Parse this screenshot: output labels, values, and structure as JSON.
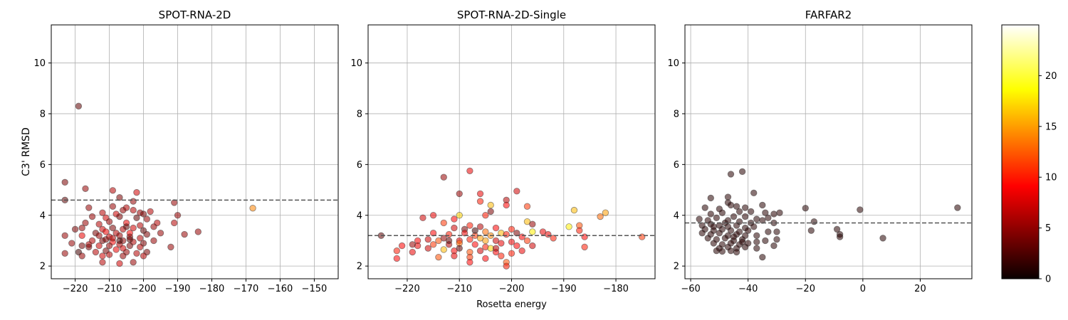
{
  "chart_data": [
    {
      "type": "scatter",
      "title": "SPOT-RNA-2D",
      "xlabel": "",
      "ylabel": "C3' RMSD",
      "xlim": [
        -227,
        -143
      ],
      "ylim": [
        1.5,
        11.5
      ],
      "xticks": [
        -220,
        -210,
        -200,
        -190,
        -180,
        -170,
        -160,
        -150
      ],
      "yticks": [
        2,
        4,
        6,
        8,
        10
      ],
      "grid": true,
      "reference_line": 4.6,
      "points": [
        [
          -219,
          8.3,
          3
        ],
        [
          -223,
          5.3,
          4
        ],
        [
          -217,
          5.05,
          5
        ],
        [
          -223,
          4.6,
          3
        ],
        [
          -209,
          4.98,
          6
        ],
        [
          -207,
          4.7,
          4
        ],
        [
          -202,
          4.9,
          7
        ],
        [
          -203,
          4.55,
          5
        ],
        [
          -191,
          4.5,
          5
        ],
        [
          -168,
          4.28,
          14
        ],
        [
          -216,
          4.3,
          5
        ],
        [
          -209,
          4.35,
          5
        ],
        [
          -205,
          4.3,
          6
        ],
        [
          -201,
          4.1,
          5
        ],
        [
          -198,
          4.15,
          6
        ],
        [
          -212,
          4.1,
          6
        ],
        [
          -208,
          4.05,
          7
        ],
        [
          -206,
          4.2,
          5
        ],
        [
          -203,
          4.2,
          6
        ],
        [
          -200,
          4.05,
          4
        ],
        [
          -190,
          4.0,
          5
        ],
        [
          -215,
          3.95,
          5
        ],
        [
          -211,
          3.9,
          7
        ],
        [
          -207,
          3.95,
          4
        ],
        [
          -202,
          3.9,
          3
        ],
        [
          -199,
          3.85,
          5
        ],
        [
          -196,
          3.7,
          6
        ],
        [
          -217,
          3.7,
          5
        ],
        [
          -213,
          3.65,
          6
        ],
        [
          -210,
          3.75,
          5
        ],
        [
          -205,
          3.7,
          8
        ],
        [
          -201,
          3.6,
          6
        ],
        [
          -197,
          3.55,
          5
        ],
        [
          -191,
          3.7,
          6
        ],
        [
          -212,
          3.45,
          7
        ],
        [
          -209,
          3.5,
          4
        ],
        [
          -206,
          3.45,
          6
        ],
        [
          -203,
          3.5,
          7
        ],
        [
          -200,
          3.4,
          3
        ],
        [
          -195,
          3.3,
          5
        ],
        [
          -220,
          3.45,
          4
        ],
        [
          -218,
          3.5,
          5
        ],
        [
          -214,
          3.3,
          4
        ],
        [
          -211,
          3.35,
          8
        ],
        [
          -208,
          3.3,
          6
        ],
        [
          -204,
          3.3,
          9
        ],
        [
          -199,
          3.25,
          4
        ],
        [
          -188,
          3.25,
          5
        ],
        [
          -184,
          3.35,
          5
        ],
        [
          -223,
          3.2,
          5
        ],
        [
          -218,
          3.2,
          8
        ],
        [
          -213,
          3.2,
          5
        ],
        [
          -210,
          3.15,
          7
        ],
        [
          -207,
          3.2,
          5
        ],
        [
          -204,
          3.15,
          5
        ],
        [
          -201,
          3.1,
          6
        ],
        [
          -197,
          3.0,
          5
        ],
        [
          -215,
          3.0,
          6
        ],
        [
          -212,
          3.0,
          4
        ],
        [
          -209,
          2.95,
          9
        ],
        [
          -206,
          3.0,
          5
        ],
        [
          -203,
          2.95,
          6
        ],
        [
          -200,
          2.9,
          4
        ],
        [
          -221,
          2.9,
          5
        ],
        [
          -218,
          2.8,
          4
        ],
        [
          -216,
          2.85,
          6
        ],
        [
          -213,
          2.8,
          7
        ],
        [
          -210,
          2.8,
          5
        ],
        [
          -207,
          2.85,
          6
        ],
        [
          -204,
          2.8,
          4
        ],
        [
          -201,
          2.75,
          6
        ],
        [
          -192,
          2.75,
          5
        ],
        [
          -219,
          2.55,
          2
        ],
        [
          -214,
          2.55,
          6
        ],
        [
          -211,
          2.6,
          4
        ],
        [
          -208,
          2.65,
          8
        ],
        [
          -205,
          2.55,
          5
        ],
        [
          -202,
          2.5,
          6
        ],
        [
          -199,
          2.55,
          4
        ],
        [
          -223,
          2.5,
          5
        ],
        [
          -218,
          2.4,
          5
        ],
        [
          -212,
          2.4,
          7
        ],
        [
          -210,
          2.45,
          6
        ],
        [
          -206,
          2.4,
          5
        ],
        [
          -200,
          2.4,
          6
        ],
        [
          -212,
          2.15,
          6
        ],
        [
          -207,
          2.1,
          7
        ],
        [
          -203,
          2.15,
          5
        ],
        [
          -216,
          2.75,
          4
        ],
        [
          -205,
          3.55,
          3
        ],
        [
          -207,
          3.0,
          2
        ],
        [
          -204,
          3.05,
          3
        ],
        [
          -206,
          2.7,
          7
        ],
        [
          -209,
          3.1,
          6
        ],
        [
          -211,
          3.05,
          4
        ]
      ]
    },
    {
      "type": "scatter",
      "title": "SPOT-RNA-2D-Single",
      "xlabel": "Rosetta energy",
      "ylabel": "",
      "xlim": [
        -227.5,
        -172.5
      ],
      "ylim": [
        1.5,
        11.5
      ],
      "xticks": [
        -220,
        -210,
        -200,
        -190,
        -180
      ],
      "yticks": [
        2,
        4,
        6,
        8,
        10
      ],
      "grid": true,
      "reference_line": 3.2,
      "points": [
        [
          -208,
          5.75,
          8
        ],
        [
          -213,
          5.5,
          5
        ],
        [
          -210,
          4.85,
          5
        ],
        [
          -206,
          4.85,
          8
        ],
        [
          -199,
          4.95,
          7
        ],
        [
          -201,
          4.6,
          6
        ],
        [
          -204,
          4.4,
          16
        ],
        [
          -206,
          4.55,
          10
        ],
        [
          -201,
          4.4,
          9
        ],
        [
          -197,
          4.35,
          11
        ],
        [
          -188,
          4.2,
          16
        ],
        [
          -182,
          4.1,
          15
        ],
        [
          -205,
          4.0,
          10
        ],
        [
          -204,
          4.15,
          4
        ],
        [
          -210,
          4.0,
          17
        ],
        [
          -215,
          4.0,
          8
        ],
        [
          -217,
          3.9,
          7
        ],
        [
          -197,
          3.75,
          16
        ],
        [
          -183,
          3.95,
          13
        ],
        [
          -187,
          3.6,
          12
        ],
        [
          -196,
          3.65,
          5
        ],
        [
          -211,
          3.85,
          9
        ],
        [
          -208,
          3.6,
          10
        ],
        [
          -206,
          3.55,
          6
        ],
        [
          -203,
          3.5,
          9
        ],
        [
          -200,
          3.45,
          10
        ],
        [
          -194,
          3.35,
          8
        ],
        [
          -189,
          3.55,
          18
        ],
        [
          -213,
          3.7,
          11
        ],
        [
          -211,
          3.5,
          7
        ],
        [
          -209,
          3.45,
          4
        ],
        [
          -205,
          3.35,
          13
        ],
        [
          -202,
          3.3,
          16
        ],
        [
          -199,
          3.3,
          4
        ],
        [
          -196,
          3.35,
          18
        ],
        [
          -192,
          3.1,
          10
        ],
        [
          -187,
          3.4,
          10
        ],
        [
          -175,
          3.15,
          11
        ],
        [
          -186,
          3.15,
          9
        ],
        [
          -193,
          3.25,
          8
        ],
        [
          -215,
          3.3,
          9
        ],
        [
          -212,
          3.25,
          10
        ],
        [
          -209,
          3.3,
          8
        ],
        [
          -207,
          3.2,
          11
        ],
        [
          -204,
          3.2,
          14
        ],
        [
          -201,
          3.25,
          10
        ],
        [
          -198,
          3.15,
          9
        ],
        [
          -218,
          3.0,
          9
        ],
        [
          -216,
          3.05,
          7
        ],
        [
          -213,
          3.1,
          5
        ],
        [
          -210,
          3.0,
          8
        ],
        [
          -208,
          3.05,
          10
        ],
        [
          -205,
          3.0,
          15
        ],
        [
          -203,
          3.0,
          7
        ],
        [
          -200,
          2.95,
          8
        ],
        [
          -197,
          3.0,
          11
        ],
        [
          -225,
          3.2,
          3
        ],
        [
          -221,
          2.8,
          9
        ],
        [
          -218,
          2.8,
          8
        ],
        [
          -215,
          2.85,
          11
        ],
        [
          -212,
          2.85,
          6
        ],
        [
          -210,
          2.9,
          13
        ],
        [
          -207,
          2.85,
          9
        ],
        [
          -205,
          2.75,
          10
        ],
        [
          -202,
          2.9,
          8
        ],
        [
          -199,
          2.8,
          9
        ],
        [
          -196,
          2.8,
          7
        ],
        [
          -222,
          2.6,
          10
        ],
        [
          -219,
          2.55,
          8
        ],
        [
          -216,
          2.7,
          7
        ],
        [
          -213,
          2.65,
          16
        ],
        [
          -211,
          2.6,
          9
        ],
        [
          -208,
          2.55,
          12
        ],
        [
          -206,
          2.6,
          7
        ],
        [
          -203,
          2.55,
          9
        ],
        [
          -200,
          2.5,
          10
        ],
        [
          -198,
          2.6,
          8
        ],
        [
          -214,
          2.35,
          12
        ],
        [
          -211,
          2.4,
          8
        ],
        [
          -208,
          2.35,
          11
        ],
        [
          -205,
          2.3,
          9
        ],
        [
          -202,
          2.4,
          10
        ],
        [
          -222,
          2.3,
          9
        ],
        [
          -208,
          2.15,
          9
        ],
        [
          -201,
          2.15,
          12
        ],
        [
          -201,
          2.0,
          10
        ],
        [
          -186,
          2.75,
          10
        ],
        [
          -204,
          2.7,
          17
        ],
        [
          -210,
          2.7,
          3
        ],
        [
          -212,
          3.0,
          3
        ],
        [
          -207,
          3.4,
          2
        ],
        [
          -219,
          2.85,
          5
        ],
        [
          -206,
          3.1,
          15
        ],
        [
          -203,
          2.7,
          6
        ],
        [
          -214,
          3.0,
          12
        ]
      ]
    },
    {
      "type": "scatter",
      "title": "FARFAR2",
      "xlabel": "",
      "ylabel": "",
      "xlim": [
        -62,
        38
      ],
      "ylim": [
        1.5,
        11.5
      ],
      "xticks": [
        -60,
        -40,
        -20,
        0,
        20
      ],
      "yticks": [
        2,
        4,
        6,
        8,
        10
      ],
      "grid": true,
      "reference_line": 3.7,
      "points": [
        [
          -42,
          5.72,
          1
        ],
        [
          -46,
          5.62,
          1
        ],
        [
          -38,
          4.88,
          1
        ],
        [
          -53,
          4.68,
          1
        ],
        [
          -47,
          4.72,
          1
        ],
        [
          -47,
          4.5,
          1
        ],
        [
          -44,
          4.35,
          1
        ],
        [
          -41,
          4.3,
          1
        ],
        [
          -35,
          4.4,
          1
        ],
        [
          -20,
          4.28,
          1
        ],
        [
          -1,
          4.22,
          1
        ],
        [
          33,
          4.3,
          1
        ],
        [
          -55,
          4.3,
          1
        ],
        [
          -50,
          4.25,
          1
        ],
        [
          -46,
          4.4,
          1
        ],
        [
          -43,
          4.15,
          1
        ],
        [
          -39,
          4.15,
          1
        ],
        [
          -34,
          4.1,
          1
        ],
        [
          -31,
          4.05,
          1
        ],
        [
          -29,
          4.1,
          1
        ],
        [
          -53,
          4.05,
          1
        ],
        [
          -49,
          4.1,
          1
        ],
        [
          -45,
          3.95,
          1
        ],
        [
          -41,
          3.95,
          1
        ],
        [
          -37,
          3.85,
          1
        ],
        [
          -33,
          3.9,
          1
        ],
        [
          -57,
          3.85,
          1
        ],
        [
          -54,
          3.8,
          1
        ],
        [
          -51,
          3.9,
          1
        ],
        [
          -47,
          3.8,
          1
        ],
        [
          -43,
          3.75,
          1
        ],
        [
          -39,
          3.7,
          1
        ],
        [
          -35,
          3.8,
          1
        ],
        [
          -31,
          3.7,
          1
        ],
        [
          -17,
          3.75,
          1
        ],
        [
          -56,
          3.6,
          1
        ],
        [
          -53,
          3.65,
          1
        ],
        [
          -50,
          3.6,
          1
        ],
        [
          -47,
          3.55,
          1
        ],
        [
          -44,
          3.6,
          1
        ],
        [
          -41,
          3.5,
          1
        ],
        [
          -38,
          3.55,
          1
        ],
        [
          -55,
          3.45,
          1
        ],
        [
          -52,
          3.4,
          1
        ],
        [
          -49,
          3.45,
          1
        ],
        [
          -46,
          3.4,
          1
        ],
        [
          -43,
          3.35,
          1
        ],
        [
          -40,
          3.4,
          1
        ],
        [
          -33,
          3.35,
          1
        ],
        [
          -30,
          3.35,
          1
        ],
        [
          -18,
          3.4,
          1
        ],
        [
          -9,
          3.45,
          1
        ],
        [
          -56,
          3.3,
          1
        ],
        [
          -53,
          3.25,
          1
        ],
        [
          -50,
          3.3,
          1
        ],
        [
          -47,
          3.2,
          1
        ],
        [
          -44,
          3.25,
          1
        ],
        [
          -41,
          3.2,
          1
        ],
        [
          -37,
          3.2,
          1
        ],
        [
          -8,
          3.25,
          1
        ],
        [
          -8,
          3.15,
          1
        ],
        [
          -54,
          3.1,
          1
        ],
        [
          -51,
          3.05,
          1
        ],
        [
          -48,
          3.1,
          1
        ],
        [
          -45,
          3.0,
          1
        ],
        [
          -42,
          3.05,
          1
        ],
        [
          -34,
          3.0,
          1
        ],
        [
          -30,
          3.05,
          1
        ],
        [
          7,
          3.1,
          1
        ],
        [
          -52,
          2.9,
          1
        ],
        [
          -49,
          2.85,
          1
        ],
        [
          -46,
          2.9,
          1
        ],
        [
          -43,
          2.85,
          1
        ],
        [
          -40,
          2.9,
          1
        ],
        [
          -37,
          2.95,
          1
        ],
        [
          -50,
          2.7,
          1
        ],
        [
          -47,
          2.75,
          1
        ],
        [
          -44,
          2.7,
          1
        ],
        [
          -41,
          2.75,
          1
        ],
        [
          -37,
          2.7,
          1
        ],
        [
          -31,
          2.8,
          1
        ],
        [
          -49,
          2.58,
          1
        ],
        [
          -46,
          2.6,
          1
        ],
        [
          -44,
          2.55,
          1
        ],
        [
          -35,
          2.35,
          1
        ],
        [
          -51,
          2.6,
          1
        ],
        [
          -48,
          3.7,
          1
        ],
        [
          -45,
          3.15,
          1
        ],
        [
          -52,
          3.55,
          1
        ],
        [
          -42,
          2.95,
          1
        ]
      ]
    }
  ],
  "colorbar": {
    "min": 0,
    "max": 25,
    "ticks": [
      0,
      5,
      10,
      15,
      20
    ],
    "colormap": "hot"
  },
  "colors": {
    "grid": "#b0b0b0",
    "reference_line": "#555555",
    "marker_edge": "#333333"
  }
}
